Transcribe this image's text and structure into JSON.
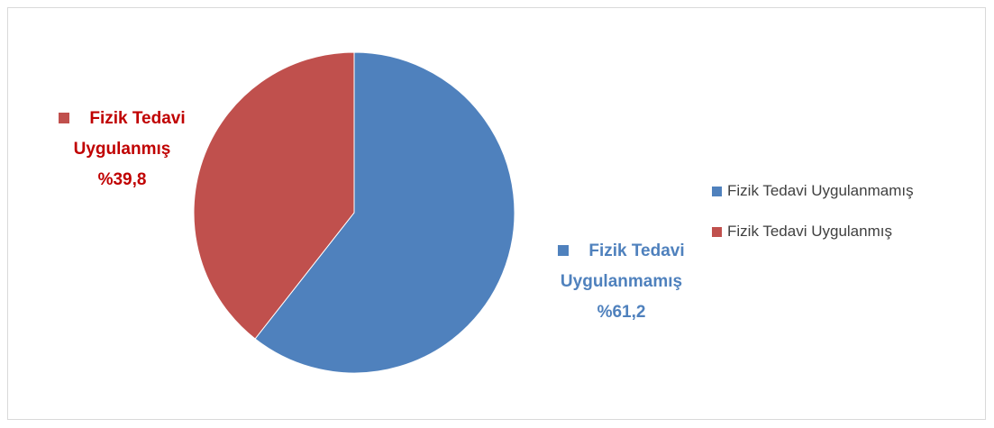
{
  "chart_data": {
    "type": "pie",
    "categories": [
      "Fizik Tedavi Uygulanmamış",
      "Fizik Tedavi Uygulanmış"
    ],
    "values": [
      61.2,
      39.8
    ],
    "value_labels": [
      "%61,2",
      "%39,8"
    ],
    "colors": [
      "#4f81bd",
      "#c0504d"
    ],
    "label_colors": [
      "#4f81bd",
      "#c00000"
    ],
    "legend": "right"
  }
}
